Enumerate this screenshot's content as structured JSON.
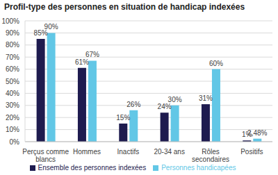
{
  "chart_data": {
    "type": "bar",
    "title": "Profil-type des personnes en situation de handicap indexées",
    "categories": [
      "Perçus comme blancs",
      "Hommes",
      "Inactifs",
      "20-34 ans",
      "Rôles secondaires",
      "Positifs"
    ],
    "series": [
      {
        "name": "Ensemble des personnes indexées",
        "color": "#1e1b4f",
        "values": [
          85,
          61,
          15,
          24,
          31,
          1
        ],
        "value_labels": [
          "85%",
          "61%",
          "15%",
          "24%",
          "31%",
          "1%"
        ]
      },
      {
        "name": "Personnes handicapées",
        "color": "#62c7e6",
        "values": [
          90,
          67,
          26,
          30,
          60,
          2.48
        ],
        "value_labels": [
          "90%",
          "67%",
          "26%",
          "30%",
          "60%",
          "2,48%"
        ]
      }
    ],
    "ylim": [
      0,
      100
    ],
    "yticks": [
      {
        "value": 0,
        "label": "0%"
      },
      {
        "value": 10,
        "label": "10%"
      },
      {
        "value": 20,
        "label": "20%"
      },
      {
        "value": 30,
        "label": "30%"
      },
      {
        "value": 40,
        "label": "40%"
      },
      {
        "value": 50,
        "label": "50%"
      },
      {
        "value": 60,
        "label": "60%"
      },
      {
        "value": 70,
        "label": "70%"
      },
      {
        "value": 80,
        "label": "80%"
      },
      {
        "value": 90,
        "label": "90%"
      },
      {
        "value": 100,
        "label": "100%"
      }
    ],
    "grid": true,
    "legend": "bottom",
    "data_labels": true
  }
}
